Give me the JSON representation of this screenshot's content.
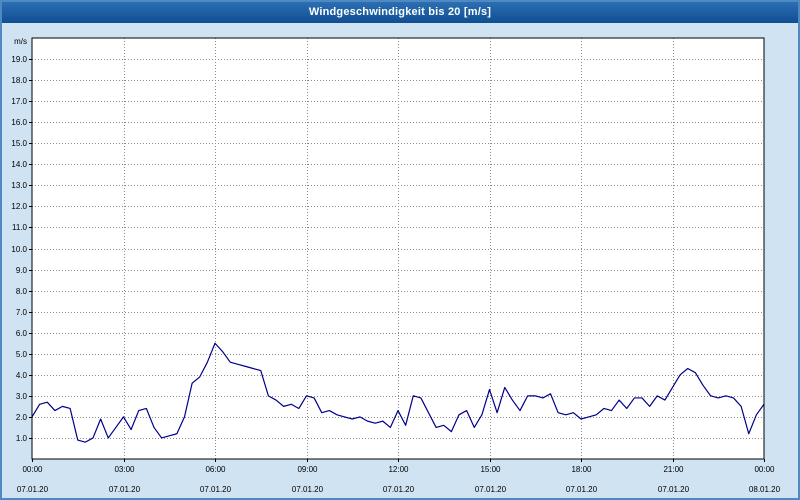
{
  "window": {
    "title": "Windgeschwindigkeit bis 20 [m/s]"
  },
  "colors": {
    "page_background": "#cfe3f2",
    "titlebar_background": "#14579f",
    "titlebar_text": "#ffffff",
    "plot_background": "#ffffff",
    "plot_border": "#000000",
    "gridline": "#8a8a8a",
    "tick_text": "#000000",
    "series_line": "#00008b"
  },
  "chart_data": {
    "type": "line",
    "title": "Windgeschwindigkeit bis 20 [m/s]",
    "ylabel": "m/s",
    "xlabel": "",
    "ylim": [
      0,
      20
    ],
    "y_tick_step": 1,
    "y_tick_labels": [
      "1.0",
      "2.0",
      "3.0",
      "4.0",
      "5.0",
      "6.0",
      "7.0",
      "8.0",
      "9.0",
      "10.0",
      "11.0",
      "12.0",
      "13.0",
      "14.0",
      "15.0",
      "16.0",
      "17.0",
      "18.0",
      "19.0"
    ],
    "x_range_hours": [
      0,
      24
    ],
    "x_tick_step_hours": 3,
    "grid": true,
    "legend": "none",
    "x_ticks": [
      {
        "time": "00:00",
        "date": "07.01.20"
      },
      {
        "time": "03:00",
        "date": "07.01.20"
      },
      {
        "time": "06:00",
        "date": "07.01.20"
      },
      {
        "time": "09:00",
        "date": "07.01.20"
      },
      {
        "time": "12:00",
        "date": "07.01.20"
      },
      {
        "time": "15:00",
        "date": "07.01.20"
      },
      {
        "time": "18:00",
        "date": "07.01.20"
      },
      {
        "time": "21:00",
        "date": "07.01.20"
      },
      {
        "time": "00:00",
        "date": "08.01.20"
      }
    ],
    "series": [
      {
        "name": "Windgeschwindigkeit",
        "color": "#00008b",
        "x_step_hours": 0.25,
        "values": [
          2.0,
          2.6,
          2.7,
          2.3,
          2.5,
          2.4,
          0.9,
          0.8,
          1.0,
          1.9,
          1.0,
          1.5,
          2.0,
          1.4,
          2.3,
          2.4,
          1.5,
          1.0,
          1.1,
          1.2,
          2.0,
          3.6,
          3.9,
          4.6,
          5.5,
          5.1,
          4.6,
          4.5,
          4.4,
          4.3,
          4.2,
          3.0,
          2.8,
          2.5,
          2.6,
          2.4,
          3.0,
          2.9,
          2.2,
          2.3,
          2.1,
          2.0,
          1.9,
          2.0,
          1.8,
          1.7,
          1.8,
          1.5,
          2.3,
          1.6,
          3.0,
          2.9,
          2.2,
          1.5,
          1.6,
          1.3,
          2.1,
          2.3,
          1.5,
          2.1,
          3.3,
          2.2,
          3.4,
          2.8,
          2.3,
          3.0,
          3.0,
          2.9,
          3.1,
          2.2,
          2.1,
          2.2,
          1.9,
          2.0,
          2.1,
          2.4,
          2.3,
          2.8,
          2.4,
          2.9,
          2.9,
          2.5,
          3.0,
          2.8,
          3.4,
          4.0,
          4.3,
          4.1,
          3.5,
          3.0,
          2.9,
          3.0,
          2.9,
          2.5,
          1.2,
          2.1,
          2.6
        ]
      }
    ]
  }
}
